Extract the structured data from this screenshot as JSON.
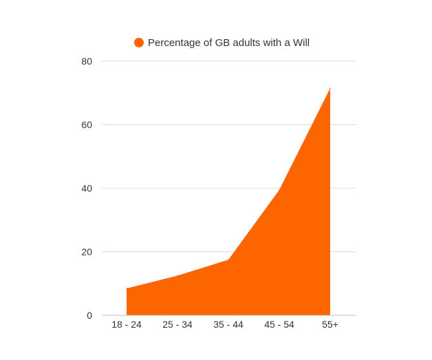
{
  "colors": {
    "series": "#fc6500",
    "grid": "#d9d9d9",
    "text": "#333333"
  },
  "chart_data": {
    "type": "area",
    "title": "",
    "xlabel": "",
    "ylabel": "",
    "legend_position": "top-center",
    "grid": true,
    "categories": [
      "18 - 24",
      "25 - 34",
      "35 - 44",
      "45 - 54",
      "55+"
    ],
    "series": [
      {
        "name": "Percentage of GB adults with a Will",
        "values": [
          8.5,
          12.5,
          17.5,
          39.5,
          71.5
        ]
      }
    ],
    "ylim": [
      0,
      80
    ],
    "yticks": [
      0,
      20,
      40,
      60,
      80
    ]
  }
}
